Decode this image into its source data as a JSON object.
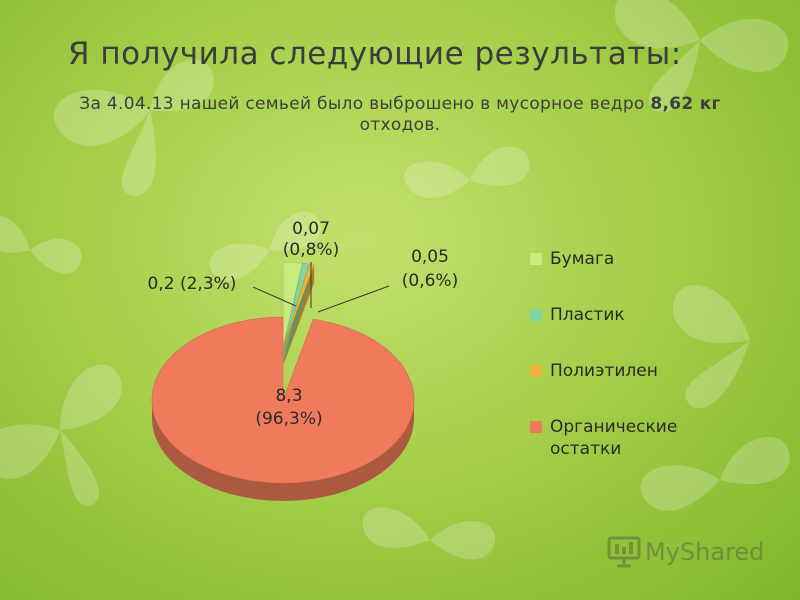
{
  "slide": {
    "title": "Я получила следующие результаты:",
    "subtitle_before": "За 4.04.13 нашей семьей было выброшено в мусорное ведро ",
    "subtitle_bold": "8,62 кг",
    "subtitle_after": "  отходов."
  },
  "chart_data": {
    "type": "pie",
    "categories": [
      "Бумага",
      "Пластик",
      "Полиэтилен",
      "Органические остатки"
    ],
    "values": [
      0.2,
      0.07,
      0.05,
      8.3
    ],
    "percents": [
      "2,3%",
      "0,8%",
      "0,6%",
      "96,3%"
    ],
    "colors": [
      "#c9ea7e",
      "#7fd6a0",
      "#f0b43a",
      "#ef7b5c"
    ],
    "data_labels": [
      {
        "line1": "0,2 (2,3%)",
        "line2": ""
      },
      {
        "line1": "0,07",
        "line2": "(0,8%)"
      },
      {
        "line1": "0,05",
        "line2": "(0,6%)"
      },
      {
        "line1": "8,3",
        "line2": "(96,3%)"
      }
    ],
    "legend": {
      "position": "right",
      "items": [
        {
          "label_lines": [
            "Бумага"
          ]
        },
        {
          "label_lines": [
            "Пластик"
          ]
        },
        {
          "label_lines": [
            "Полиэтилен"
          ]
        },
        {
          "label_lines": [
            "Органические",
            "остатки"
          ]
        }
      ]
    },
    "style": "3d-exploded"
  },
  "watermark": {
    "text": "MyShared",
    "icon": "presentation-screen-icon"
  }
}
